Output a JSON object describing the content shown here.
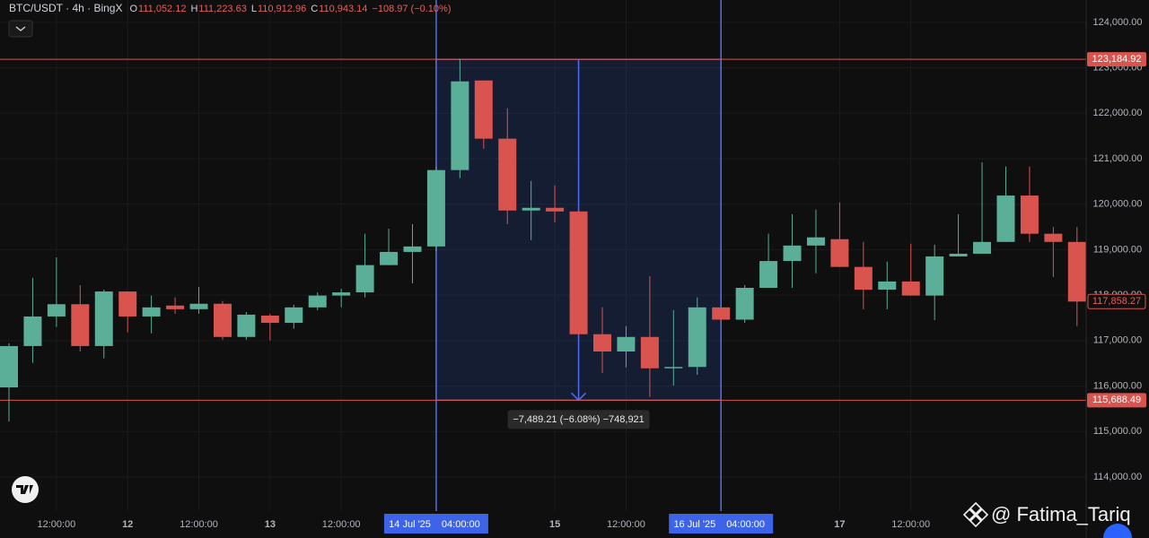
{
  "chart_data": {
    "type": "candlestick",
    "title": "BTC/USDT · 4h · BingX",
    "ohlc_header": [
      {
        "key": "O",
        "value": "111,052.12"
      },
      {
        "key": "H",
        "value": "111,223.63"
      },
      {
        "key": "L",
        "value": "110,912.96"
      },
      {
        "key": "C",
        "value": "110,943.14"
      }
    ],
    "change": "−108.97 (−0.10%)",
    "header_color": "#e5605b",
    "up_color": "#5bae97",
    "down_color": "#d9544f",
    "grid": true,
    "categories": [
      null,
      null,
      "12:00:00",
      null,
      null,
      "12",
      null,
      null,
      "12:00:00",
      null,
      null,
      "13",
      null,
      null,
      "12:00:00",
      null,
      null,
      null,
      {
        "date": "14 Jul '25",
        "time": "04:00:00",
        "highlight": true
      },
      null,
      null,
      null,
      null,
      "15",
      null,
      null,
      "12:00:00",
      null,
      null,
      null,
      {
        "date": "16 Jul '25",
        "time": "04:00:00",
        "highlight": true
      },
      null,
      null,
      null,
      null,
      "17",
      null,
      null,
      "12:00:00",
      null,
      null,
      null,
      null,
      null,
      null,
      null
    ],
    "open": [
      115970,
      116880,
      117530,
      117800,
      116880,
      118080,
      117530,
      117770,
      117690,
      117810,
      117080,
      117550,
      117390,
      117730,
      117990,
      118060,
      118660,
      118950,
      119070,
      120750,
      122720,
      121440,
      119860,
      119920,
      119840,
      117140,
      116760,
      117080,
      116390,
      116420,
      117730,
      117460,
      118160,
      118750,
      119090,
      119230,
      118620,
      118120,
      118300,
      117990,
      118850,
      118910,
      119170,
      120190,
      119350,
      119170
    ],
    "high": [
      116940,
      118380,
      118830,
      118220,
      118120,
      118080,
      117990,
      117950,
      118180,
      117870,
      117630,
      117590,
      117790,
      118060,
      118140,
      119350,
      119460,
      119560,
      120830,
      123184.92,
      122720,
      122110,
      120510,
      120410,
      119860,
      117730,
      117320,
      118420,
      117670,
      117950,
      117730,
      118220,
      119350,
      119780,
      119880,
      120040,
      119170,
      118740,
      119130,
      119110,
      119780,
      120920,
      120830,
      120830,
      119500,
      119500
    ],
    "low": [
      115220,
      116510,
      117300,
      116760,
      116610,
      117180,
      117160,
      117590,
      117590,
      117020,
      117020,
      117000,
      117260,
      117670,
      117730,
      117950,
      118660,
      118260,
      118970,
      120570,
      121220,
      119560,
      119210,
      119600,
      117140,
      116290,
      116410,
      115760,
      116010,
      116250,
      117390,
      117390,
      118160,
      118160,
      118480,
      118620,
      117690,
      117690,
      117990,
      117450,
      118850,
      118910,
      119170,
      119170,
      118400,
      117320
    ],
    "close": [
      116880,
      117530,
      117800,
      116880,
      118080,
      117530,
      117730,
      117690,
      117810,
      117080,
      117570,
      117390,
      117730,
      117990,
      118060,
      118660,
      118950,
      119070,
      120750,
      122700,
      121440,
      119860,
      119920,
      119840,
      117140,
      116760,
      117080,
      116390,
      116420,
      117730,
      117460,
      118160,
      118750,
      119090,
      119270,
      118620,
      118120,
      118300,
      117990,
      118850,
      118910,
      119170,
      120190,
      119350,
      119170,
      117858.27
    ],
    "ylim": [
      113250,
      124490
    ],
    "yticks": [
      {
        "value": 114000,
        "label": "114,000.00"
      },
      {
        "value": 115000,
        "label": "115,000.00"
      },
      {
        "value": 116000,
        "label": "116,000.00"
      },
      {
        "value": 117000,
        "label": "117,000.00"
      },
      {
        "value": 118000,
        "label": "118,000.00"
      },
      {
        "value": 119000,
        "label": "119,000.00"
      },
      {
        "value": 120000,
        "label": "120,000.00"
      },
      {
        "value": 121000,
        "label": "121,000.00"
      },
      {
        "value": 122000,
        "label": "122,000.00"
      },
      {
        "value": 123000,
        "label": "123,000.00"
      },
      {
        "value": 124000,
        "label": "124,000.00"
      }
    ],
    "price_lines": [
      {
        "value": 123184.92,
        "label": "123,184.92"
      },
      {
        "value": 115688.49,
        "label": "115,688.49"
      }
    ],
    "last_price": {
      "value": 117858.27,
      "label": "117,858.27"
    },
    "measure_label": "−7,489.21 (−6.08%) −748,921",
    "watermark": "@ Fatima_Tariq"
  }
}
